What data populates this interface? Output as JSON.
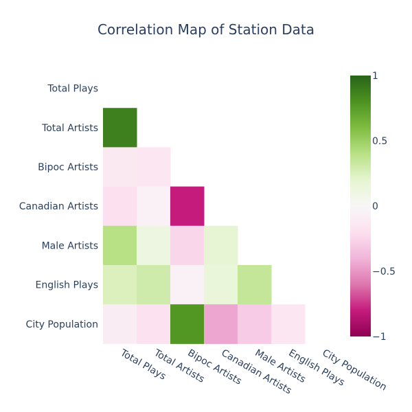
{
  "chart_data": {
    "type": "heatmap",
    "title": "Correlation Map of Station Data",
    "variables": [
      "Total Plays",
      "Total Artists",
      "Bipoc Artists",
      "Canadian Artists",
      "Male Artists",
      "English Plays",
      "City Population"
    ],
    "matrix": [
      [
        null,
        null,
        null,
        null,
        null,
        null,
        null
      ],
      [
        0.88,
        null,
        null,
        null,
        null,
        null,
        null
      ],
      [
        -0.12,
        -0.15,
        null,
        null,
        null,
        null,
        null
      ],
      [
        -0.2,
        -0.05,
        -0.8,
        null,
        null,
        null,
        null
      ],
      [
        0.4,
        0.12,
        -0.25,
        0.18,
        null,
        null,
        null
      ],
      [
        0.25,
        0.3,
        -0.05,
        0.15,
        0.35,
        null,
        null
      ],
      [
        -0.1,
        -0.18,
        0.78,
        -0.45,
        -0.3,
        -0.15,
        null
      ]
    ],
    "colorscale": {
      "name": "PiYG",
      "zmin": -1,
      "zmax": 1,
      "stops": [
        [
          0.0,
          "#8e0152"
        ],
        [
          0.1,
          "#c51b7d"
        ],
        [
          0.2,
          "#de77ae"
        ],
        [
          0.3,
          "#f1b6da"
        ],
        [
          0.4,
          "#fde0ef"
        ],
        [
          0.5,
          "#f7f7f7"
        ],
        [
          0.6,
          "#e6f5d0"
        ],
        [
          0.7,
          "#b8e186"
        ],
        [
          0.8,
          "#7fbc41"
        ],
        [
          0.9,
          "#4d9221"
        ],
        [
          1.0,
          "#276419"
        ]
      ],
      "ticks": [
        {
          "value": 1,
          "label": "1"
        },
        {
          "value": 0.5,
          "label": "0.5"
        },
        {
          "value": 0,
          "label": "0"
        },
        {
          "value": -0.5,
          "label": "−0.5"
        },
        {
          "value": -1,
          "label": "−1"
        }
      ]
    }
  }
}
